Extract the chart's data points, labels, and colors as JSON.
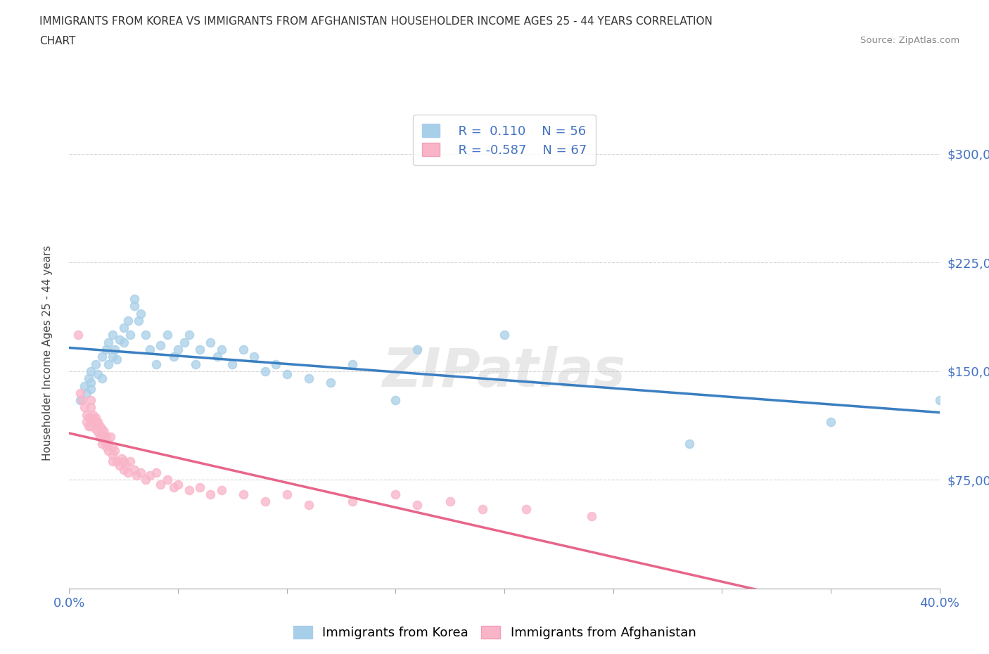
{
  "title_line1": "IMMIGRANTS FROM KOREA VS IMMIGRANTS FROM AFGHANISTAN HOUSEHOLDER INCOME AGES 25 - 44 YEARS CORRELATION",
  "title_line2": "CHART",
  "source": "Source: ZipAtlas.com",
  "ylabel_label": "Householder Income Ages 25 - 44 years",
  "x_min": 0.0,
  "x_max": 0.4,
  "y_min": 0,
  "y_max": 325000,
  "korea_color": "#a8cfe8",
  "afghanistan_color": "#f9b4c8",
  "korea_line_color": "#3a7fc1",
  "afghanistan_line_color": "#e8658a",
  "watermark": "ZIPatlas",
  "legend_korea_R": "R =  0.110",
  "legend_korea_N": "N = 56",
  "legend_afghanistan_R": "R = -0.587",
  "legend_afghanistan_N": "N = 67",
  "korea_scatter_x": [
    0.005,
    0.007,
    0.008,
    0.009,
    0.01,
    0.01,
    0.01,
    0.012,
    0.013,
    0.015,
    0.015,
    0.017,
    0.018,
    0.018,
    0.02,
    0.02,
    0.021,
    0.022,
    0.023,
    0.025,
    0.025,
    0.027,
    0.028,
    0.03,
    0.03,
    0.032,
    0.033,
    0.035,
    0.037,
    0.04,
    0.042,
    0.045,
    0.048,
    0.05,
    0.053,
    0.055,
    0.058,
    0.06,
    0.065,
    0.068,
    0.07,
    0.075,
    0.08,
    0.085,
    0.09,
    0.095,
    0.1,
    0.11,
    0.12,
    0.13,
    0.15,
    0.16,
    0.2,
    0.285,
    0.35,
    0.4
  ],
  "korea_scatter_y": [
    130000,
    140000,
    135000,
    145000,
    150000,
    138000,
    142000,
    155000,
    148000,
    160000,
    145000,
    165000,
    155000,
    170000,
    175000,
    160000,
    165000,
    158000,
    172000,
    180000,
    170000,
    185000,
    175000,
    195000,
    200000,
    185000,
    190000,
    175000,
    165000,
    155000,
    168000,
    175000,
    160000,
    165000,
    170000,
    175000,
    155000,
    165000,
    170000,
    160000,
    165000,
    155000,
    165000,
    160000,
    150000,
    155000,
    148000,
    145000,
    142000,
    155000,
    130000,
    165000,
    175000,
    100000,
    115000,
    130000
  ],
  "afghanistan_scatter_x": [
    0.004,
    0.005,
    0.006,
    0.007,
    0.008,
    0.008,
    0.009,
    0.009,
    0.01,
    0.01,
    0.01,
    0.01,
    0.011,
    0.012,
    0.012,
    0.012,
    0.013,
    0.013,
    0.014,
    0.014,
    0.015,
    0.015,
    0.015,
    0.016,
    0.016,
    0.017,
    0.017,
    0.018,
    0.018,
    0.019,
    0.02,
    0.02,
    0.02,
    0.021,
    0.022,
    0.023,
    0.024,
    0.025,
    0.025,
    0.026,
    0.027,
    0.028,
    0.03,
    0.031,
    0.033,
    0.035,
    0.037,
    0.04,
    0.042,
    0.045,
    0.048,
    0.05,
    0.055,
    0.06,
    0.065,
    0.07,
    0.08,
    0.09,
    0.1,
    0.11,
    0.13,
    0.15,
    0.16,
    0.175,
    0.19,
    0.21,
    0.24
  ],
  "afghanistan_scatter_y": [
    175000,
    135000,
    130000,
    125000,
    120000,
    115000,
    118000,
    112000,
    130000,
    125000,
    118000,
    112000,
    120000,
    115000,
    110000,
    118000,
    108000,
    115000,
    112000,
    105000,
    110000,
    105000,
    100000,
    108000,
    102000,
    98000,
    105000,
    100000,
    95000,
    105000,
    98000,
    92000,
    88000,
    95000,
    88000,
    85000,
    90000,
    82000,
    88000,
    85000,
    80000,
    88000,
    82000,
    78000,
    80000,
    75000,
    78000,
    80000,
    72000,
    75000,
    70000,
    72000,
    68000,
    70000,
    65000,
    68000,
    65000,
    60000,
    65000,
    58000,
    60000,
    65000,
    58000,
    60000,
    55000,
    55000,
    50000
  ]
}
